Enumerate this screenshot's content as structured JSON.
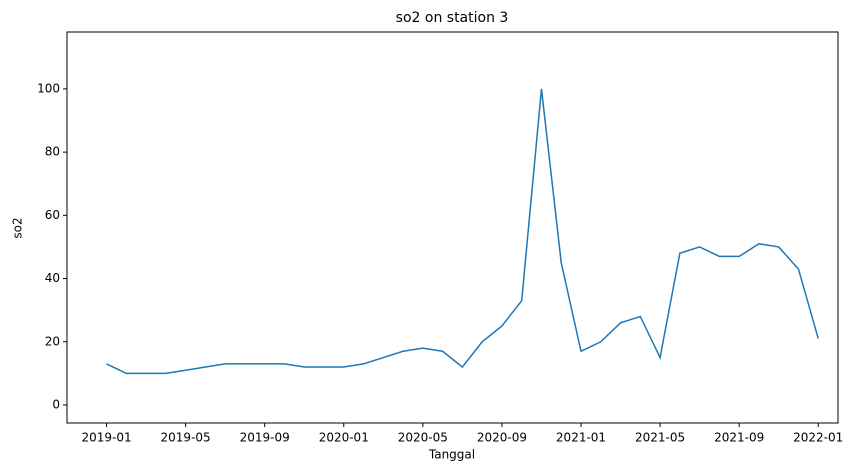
{
  "chart_data": {
    "type": "line",
    "title": "so2 on station 3",
    "x_label": "Tanggal",
    "y_label": "so2",
    "x": [
      "2019-01",
      "2019-02",
      "2019-03",
      "2019-04",
      "2019-05",
      "2019-06",
      "2019-07",
      "2019-08",
      "2019-09",
      "2019-10",
      "2019-11",
      "2019-12",
      "2020-01",
      "2020-02",
      "2020-03",
      "2020-04",
      "2020-05",
      "2020-06",
      "2020-07",
      "2020-08",
      "2020-09",
      "2020-10",
      "2020-11",
      "2020-12",
      "2021-01",
      "2021-02",
      "2021-03",
      "2021-04",
      "2021-05",
      "2021-06",
      "2021-07",
      "2021-08",
      "2021-09",
      "2021-10",
      "2021-11",
      "2021-12",
      "2022-01"
    ],
    "series": [
      {
        "name": "so2",
        "color": "#1f77b4",
        "values": [
          13,
          10,
          10,
          10,
          11,
          12,
          13,
          13,
          13,
          13,
          12,
          12,
          12,
          13,
          15,
          17,
          18,
          17,
          12,
          20,
          25,
          33,
          100,
          45,
          17,
          20,
          26,
          28,
          15,
          48,
          50,
          47,
          47,
          51,
          50,
          43,
          21
        ]
      }
    ],
    "xlim": [
      "2018-11",
      "2022-02"
    ],
    "xticks": [
      "2019-01",
      "2019-05",
      "2019-09",
      "2020-01",
      "2020-05",
      "2020-09",
      "2021-01",
      "2021-05",
      "2021-09",
      "2022-01"
    ],
    "ylim": [
      -5.7,
      118
    ],
    "yticks": [
      0,
      20,
      40,
      60,
      80,
      100
    ]
  }
}
